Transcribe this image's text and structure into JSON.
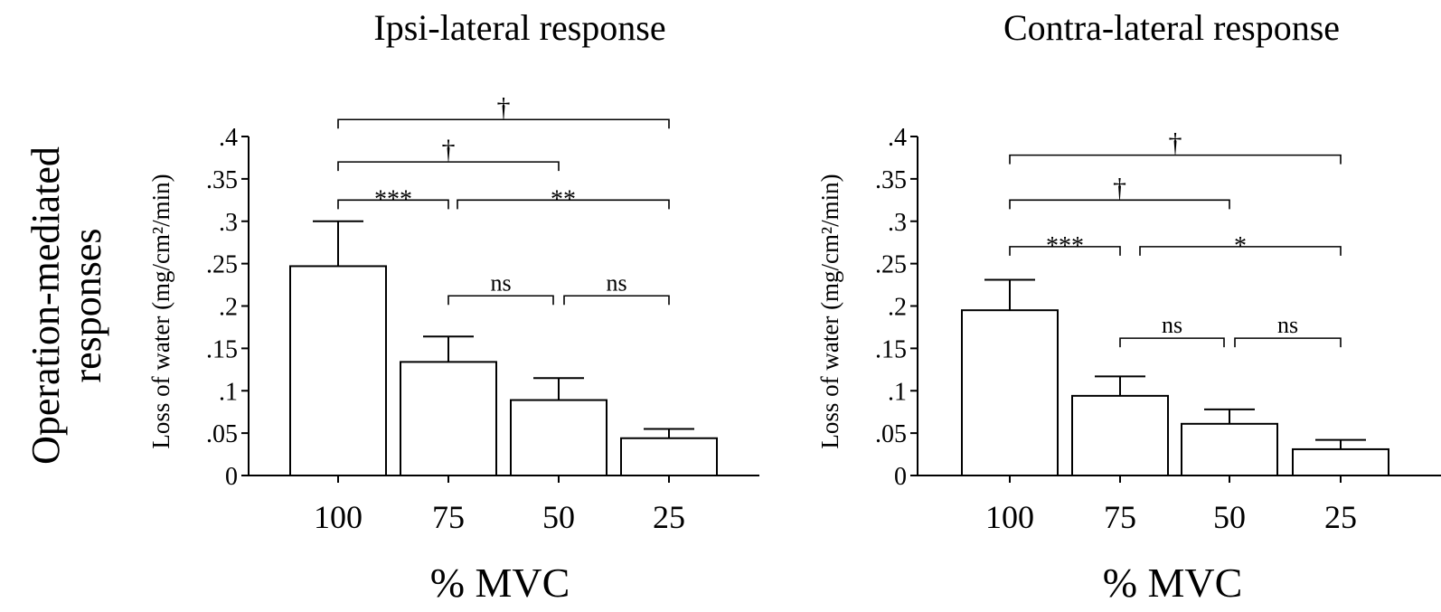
{
  "row_label": [
    "Operation-mediated",
    "responses"
  ],
  "chart_data": [
    {
      "type": "bar",
      "title": "Ipsi-lateral response",
      "xlabel": "% MVC",
      "ylabel": "Loss of water (mg/cm²/min)",
      "ylim": [
        0,
        0.4
      ],
      "yticks": [
        0,
        0.05,
        0.1,
        0.15,
        0.2,
        0.25,
        0.3,
        0.35,
        0.4
      ],
      "ytick_labels": [
        "0",
        ".05",
        ".1",
        ".15",
        ".2",
        ".25",
        ".3",
        ".35",
        ".4"
      ],
      "categories": [
        "100",
        "75",
        "50",
        "25"
      ],
      "values": [
        0.247,
        0.134,
        0.089,
        0.044
      ],
      "errors": [
        0.053,
        0.03,
        0.026,
        0.011
      ],
      "comparisons": [
        {
          "from": 0,
          "to": 3,
          "label": "†",
          "y": 0.42
        },
        {
          "from": 0,
          "to": 2,
          "label": "†",
          "y": 0.37
        },
        {
          "from": 0,
          "to": 1,
          "label": "***",
          "y": 0.325
        },
        {
          "from": 1,
          "to": 3,
          "label": "**",
          "y": 0.325
        },
        {
          "from": 1,
          "to": 2,
          "label": "ns",
          "y": 0.212
        },
        {
          "from": 2,
          "to": 3,
          "label": "ns",
          "y": 0.212
        }
      ]
    },
    {
      "type": "bar",
      "title": "Contra-lateral response",
      "xlabel": "% MVC",
      "ylabel": "Loss of water (mg/cm²/min)",
      "ylim": [
        0,
        0.4
      ],
      "yticks": [
        0,
        0.05,
        0.1,
        0.15,
        0.2,
        0.25,
        0.3,
        0.35,
        0.4
      ],
      "ytick_labels": [
        "0",
        ".05",
        ".1",
        ".15",
        ".2",
        ".25",
        ".3",
        ".35",
        ".4"
      ],
      "categories": [
        "100",
        "75",
        "50",
        "25"
      ],
      "values": [
        0.195,
        0.094,
        0.061,
        0.031
      ],
      "errors": [
        0.036,
        0.023,
        0.017,
        0.011
      ],
      "comparisons": [
        {
          "from": 0,
          "to": 3,
          "label": "†",
          "y": 0.378
        },
        {
          "from": 0,
          "to": 2,
          "label": "†",
          "y": 0.325
        },
        {
          "from": 0,
          "to": 1,
          "label": "***",
          "y": 0.27
        },
        {
          "from": 1,
          "to": 3,
          "label": "*",
          "y": 0.27
        },
        {
          "from": 1,
          "to": 2,
          "label": "ns",
          "y": 0.162
        },
        {
          "from": 2,
          "to": 3,
          "label": "ns",
          "y": 0.162
        }
      ]
    }
  ]
}
